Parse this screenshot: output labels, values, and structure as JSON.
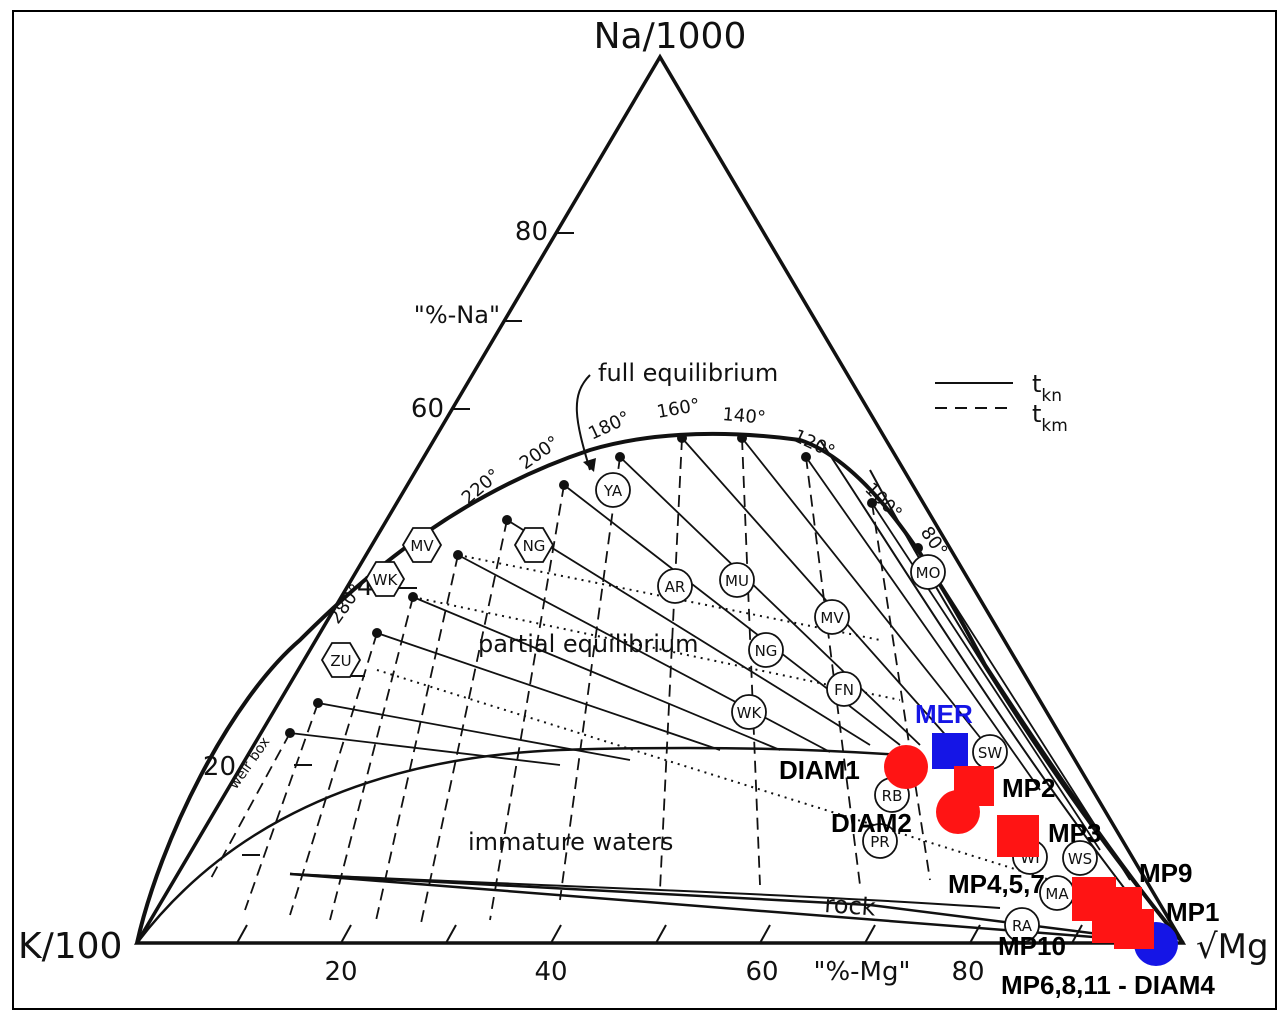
{
  "chart_data": {
    "type": "ternary",
    "vertices": {
      "top": "Na/1000",
      "left": "K/100",
      "right": "√Mg"
    },
    "left_axis_ticks": [
      "20",
      "40",
      "60",
      "80"
    ],
    "left_axis_title": "\"%-Na\"",
    "bottom_axis_ticks": [
      "20",
      "40",
      "60",
      "80"
    ],
    "bottom_axis_title": "\"%-Mg\"",
    "legend": {
      "position": "top-right",
      "entries": [
        {
          "line": "solid",
          "label": "t",
          "subscript": "kn"
        },
        {
          "line": "dashed",
          "label": "t",
          "subscript": "km"
        }
      ]
    },
    "region_labels": {
      "full": "full equilibrium",
      "partial": "partial equilibrium",
      "immature": "immature waters",
      "rock": "rock",
      "weirbox": "weir box"
    },
    "temperature_labels": [
      "280°",
      "220°",
      "200°",
      "180°",
      "160°",
      "140°",
      "120°",
      "100°",
      "80°"
    ],
    "reference_fields": [
      "ZU",
      "WK",
      "MV",
      "NG",
      "YA",
      "AR",
      "MU",
      "MV",
      "NG",
      "WK",
      "FN",
      "MO",
      "SW",
      "RB",
      "PR",
      "WI",
      "WS",
      "MA",
      "RA"
    ],
    "series": [
      {
        "name": "MER",
        "color": "#1515e6",
        "marker": "square",
        "points": [
          {
            "na": 21,
            "k": 6,
            "mg": 73
          }
        ]
      },
      {
        "name": "DIAM1",
        "color": "#ff1414",
        "marker": "circle",
        "points": [
          {
            "na": 20,
            "k": 9,
            "mg": 71
          }
        ]
      },
      {
        "name": "DIAM2",
        "color": "#ff1414",
        "marker": "circle",
        "points": [
          {
            "na": 15,
            "k": 10,
            "mg": 75
          }
        ]
      },
      {
        "name": "MP2",
        "color": "#ff1414",
        "marker": "square",
        "points": [
          {
            "na": 17,
            "k": 7,
            "mg": 76
          }
        ]
      },
      {
        "name": "MP3",
        "color": "#ff1414",
        "marker": "square",
        "points": [
          {
            "na": 11,
            "k": 9,
            "mg": 80
          }
        ]
      },
      {
        "name": "MP4,5,7",
        "color": "#ff1414",
        "marker": "square",
        "points": [
          {
            "na": 4,
            "k": 7,
            "mg": 89
          }
        ]
      },
      {
        "name": "MP9",
        "color": "#ff1414",
        "marker": "square",
        "points": [
          {
            "na": 3,
            "k": 4,
            "mg": 93
          }
        ]
      },
      {
        "name": "MP1",
        "color": "#ff1414",
        "marker": "square",
        "points": [
          {
            "na": 2,
            "k": 3,
            "mg": 95
          }
        ]
      },
      {
        "name": "MP10",
        "color": "#ff1414",
        "marker": "square",
        "points": [
          {
            "na": 1,
            "k": 4,
            "mg": 95
          }
        ]
      },
      {
        "name": "MP6,8,11 - DIAM4",
        "color": "#1515e6",
        "marker": "circle",
        "points": [
          {
            "na": 0,
            "k": 2,
            "mg": 98
          }
        ]
      }
    ]
  }
}
